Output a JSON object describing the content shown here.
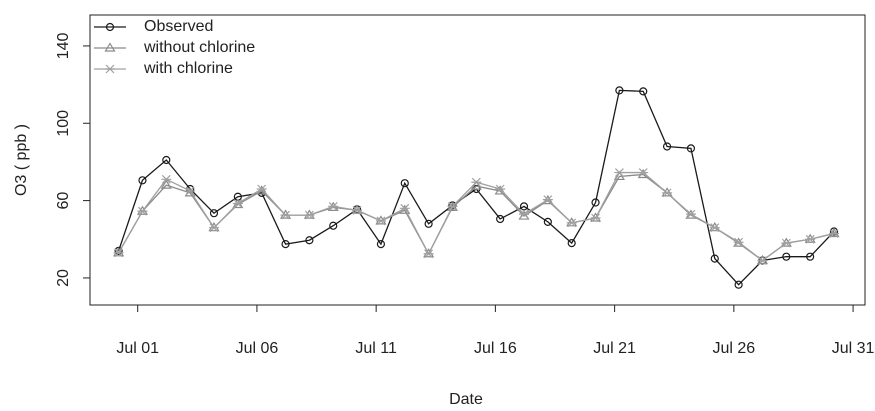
{
  "chart_data": {
    "type": "line",
    "x_label": "Date",
    "y_label": "O3 ( ppb )",
    "xlim": [
      -1,
      31.5
    ],
    "ylim": [
      6,
      156
    ],
    "xticks": [
      {
        "value": 1,
        "label": "Jul 01"
      },
      {
        "value": 6,
        "label": "Jul 06"
      },
      {
        "value": 11,
        "label": "Jul 11"
      },
      {
        "value": 16,
        "label": "Jul 16"
      },
      {
        "value": 21,
        "label": "Jul 21"
      },
      {
        "value": 26,
        "label": "Jul 26"
      },
      {
        "value": 31,
        "label": "Jul 31"
      }
    ],
    "yticks": [
      20,
      60,
      100,
      140
    ],
    "legend": "top-left",
    "x": [
      0.2,
      1.2,
      2.2,
      3.2,
      4.2,
      5.2,
      6.2,
      7.2,
      8.2,
      9.2,
      10.2,
      11.2,
      12.2,
      13.2,
      14.2,
      15.2,
      16.2,
      17.2,
      18.2,
      19.2,
      20.2,
      21.2,
      22.2,
      23.2,
      24.2,
      25.2,
      26.2,
      27.2,
      28.2,
      29.2,
      30.2
    ],
    "series": [
      {
        "name": "Observed",
        "color": "#1a1a1a",
        "marker": "circle",
        "values": [
          34,
          70.5,
          81,
          66,
          53.5,
          62,
          64,
          37.5,
          39.5,
          47,
          55.5,
          37.5,
          69,
          48,
          57.5,
          66,
          50.5,
          57,
          49,
          38,
          59,
          117,
          116.5,
          88,
          87,
          30,
          16.5,
          29,
          31,
          31,
          44
        ]
      },
      {
        "name": "without chlorine",
        "color": "#8a8a8a",
        "marker": "triangle",
        "values": [
          33,
          54.5,
          68,
          64,
          46,
          58,
          65,
          52.5,
          52.5,
          56.5,
          55,
          49.5,
          55,
          32.5,
          56.5,
          67.5,
          65,
          52,
          60,
          48.5,
          51,
          72.5,
          73.5,
          64,
          52.5,
          46,
          38,
          29,
          38,
          40,
          43
        ]
      },
      {
        "name": "with chlorine",
        "color": "#a0a0a0",
        "marker": "star",
        "values": [
          33,
          54.5,
          71,
          65,
          46,
          58.5,
          66,
          52.5,
          52.5,
          57,
          55,
          49.5,
          56,
          32.5,
          57,
          69.5,
          66,
          53,
          60.5,
          48.5,
          51,
          74.5,
          74.5,
          64,
          53,
          46,
          38.5,
          29,
          38,
          40,
          43
        ]
      }
    ]
  }
}
